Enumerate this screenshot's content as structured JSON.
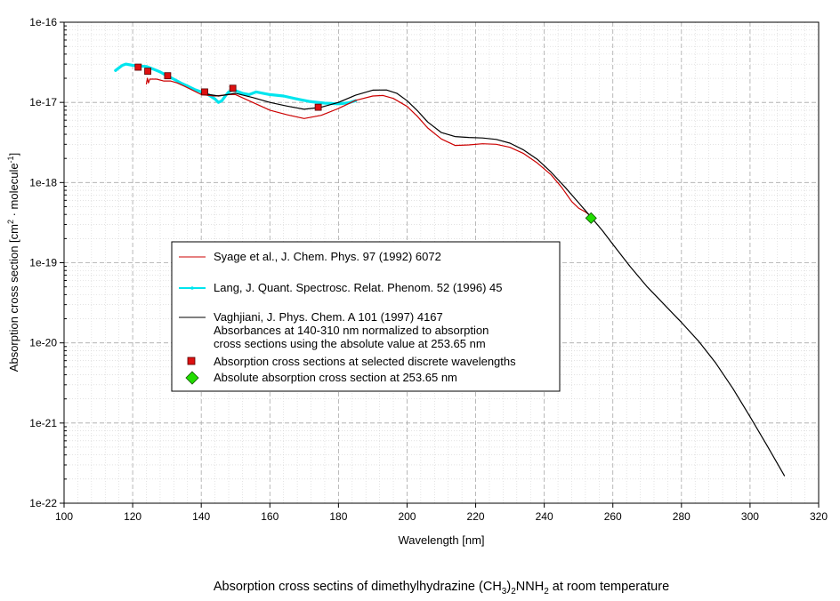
{
  "chart_data": {
    "type": "line",
    "title": "Absorption cross sectins of dimethylhydrazine (CH3)2NNH2 at room temperature",
    "caption_parts": {
      "t1": "Absorption cross sectins of dimethylhydrazine (CH",
      "s1": "3",
      "t2": ")",
      "s2": "2",
      "t3": "NNH",
      "s3": "2",
      "t4": " at room temperature"
    },
    "xlabel": "Wavelength [nm]",
    "ylabel_parts": {
      "t1": "Absorption cross section [cm",
      "sup1": "2",
      "t2": " · molecule",
      "sup2": "-1",
      "t3": "]"
    },
    "xlim": [
      100,
      320
    ],
    "ylim": [
      1e-22,
      1e-16
    ],
    "yscale": "log",
    "grid": true,
    "x_ticks": [
      "100",
      "120",
      "140",
      "160",
      "180",
      "200",
      "220",
      "240",
      "260",
      "280",
      "300",
      "320"
    ],
    "y_ticks": [
      "1e-22",
      "1e-21",
      "1e-20",
      "1e-19",
      "1e-18",
      "1e-17",
      "1e-16"
    ],
    "series": [
      {
        "name": "Syage et al., J. Chem. Phys. 97 (1992) 6072",
        "color": "#cc0000",
        "style": "thin-line",
        "points": [
          [
            124,
            1.7e-17
          ],
          [
            124.3,
            2e-17
          ],
          [
            124.6,
            1.75e-17
          ],
          [
            125,
            1.95e-17
          ],
          [
            127,
            1.95e-17
          ],
          [
            129,
            1.85e-17
          ],
          [
            131,
            1.85e-17
          ],
          [
            133,
            1.75e-17
          ],
          [
            135,
            1.6e-17
          ],
          [
            137,
            1.45e-17
          ],
          [
            140,
            1.25e-17
          ],
          [
            144,
            1.2e-17
          ],
          [
            148,
            1.25e-17
          ],
          [
            150,
            1.25e-17
          ],
          [
            155,
            1e-17
          ],
          [
            160,
            8e-18
          ],
          [
            165,
            7e-18
          ],
          [
            170,
            6.3e-18
          ],
          [
            175,
            6.9e-18
          ],
          [
            180,
            8.4e-18
          ],
          [
            185,
            1.06e-17
          ],
          [
            190,
            1.2e-17
          ],
          [
            193,
            1.22e-17
          ],
          [
            196,
            1.12e-17
          ],
          [
            200,
            8.9e-18
          ],
          [
            203,
            6.7e-18
          ],
          [
            206,
            4.8e-18
          ],
          [
            210,
            3.5e-18
          ],
          [
            214,
            2.9e-18
          ],
          [
            218,
            2.95e-18
          ],
          [
            222,
            3.05e-18
          ],
          [
            226,
            3e-18
          ],
          [
            230,
            2.75e-18
          ],
          [
            234,
            2.3e-18
          ],
          [
            238,
            1.75e-18
          ],
          [
            242,
            1.25e-18
          ],
          [
            245,
            8.8e-19
          ],
          [
            248,
            5.8e-19
          ],
          [
            250,
            4.8e-19
          ],
          [
            252,
            4.3e-19
          ],
          [
            253.65,
            3.8e-19
          ]
        ]
      },
      {
        "name": "Lang, J. Quant. Spectrosc. Relat. Phenom. 52 (1996) 45",
        "color": "#00e5ee",
        "style": "thick-line",
        "points": [
          [
            115,
            2.5e-17
          ],
          [
            116,
            2.7e-17
          ],
          [
            117,
            2.9e-17
          ],
          [
            118,
            3e-17
          ],
          [
            120,
            2.9e-17
          ],
          [
            122,
            2.85e-17
          ],
          [
            124,
            2.8e-17
          ],
          [
            126,
            2.6e-17
          ],
          [
            128,
            2.4e-17
          ],
          [
            130,
            2.15e-17
          ],
          [
            132,
            1.95e-17
          ],
          [
            134,
            1.75e-17
          ],
          [
            136,
            1.6e-17
          ],
          [
            138,
            1.45e-17
          ],
          [
            140,
            1.35e-17
          ],
          [
            142,
            1.25e-17
          ],
          [
            144,
            1.1e-17
          ],
          [
            145,
            1e-17
          ],
          [
            146,
            1.05e-17
          ],
          [
            147,
            1.2e-17
          ],
          [
            148,
            1.35e-17
          ],
          [
            149,
            1.42e-17
          ],
          [
            150,
            1.4e-17
          ],
          [
            152,
            1.3e-17
          ],
          [
            154,
            1.25e-17
          ],
          [
            156,
            1.35e-17
          ],
          [
            158,
            1.3e-17
          ],
          [
            160,
            1.25e-17
          ],
          [
            164,
            1.2e-17
          ],
          [
            168,
            1.1e-17
          ],
          [
            172,
            1.02e-17
          ],
          [
            176,
            9.8e-18
          ],
          [
            180,
            9.6e-18
          ],
          [
            183,
            9.9e-18
          ],
          [
            185,
            1.05e-17
          ]
        ]
      },
      {
        "name": "Vaghjiani, J. Phys. Chem. A 101 (1997) 4167",
        "note": [
          "Absorbances at 140-310 nm normalized to absorption",
          "cross sections using the absolute value at 253.65 nm"
        ],
        "color": "#000000",
        "style": "thin-line",
        "points": [
          [
            140,
            1.3e-17
          ],
          [
            145,
            1.2e-17
          ],
          [
            150,
            1.3e-17
          ],
          [
            155,
            1.15e-17
          ],
          [
            160,
            1e-17
          ],
          [
            165,
            9e-18
          ],
          [
            170,
            8.2e-18
          ],
          [
            175,
            8.7e-18
          ],
          [
            180,
            1e-17
          ],
          [
            185,
            1.23e-17
          ],
          [
            190,
            1.42e-17
          ],
          [
            194,
            1.43e-17
          ],
          [
            197,
            1.3e-17
          ],
          [
            200,
            1.05e-17
          ],
          [
            203,
            7.9e-18
          ],
          [
            206,
            5.7e-18
          ],
          [
            210,
            4.2e-18
          ],
          [
            214,
            3.75e-18
          ],
          [
            218,
            3.65e-18
          ],
          [
            222,
            3.6e-18
          ],
          [
            226,
            3.45e-18
          ],
          [
            230,
            3.1e-18
          ],
          [
            234,
            2.55e-18
          ],
          [
            238,
            1.95e-18
          ],
          [
            242,
            1.35e-18
          ],
          [
            246,
            8.8e-19
          ],
          [
            250,
            5.6e-19
          ],
          [
            253.65,
            3.7e-19
          ],
          [
            257,
            2.5e-19
          ],
          [
            260,
            1.7e-19
          ],
          [
            265,
            9e-20
          ],
          [
            270,
            5e-20
          ],
          [
            275,
            3e-20
          ],
          [
            280,
            1.8e-20
          ],
          [
            285,
            1.05e-20
          ],
          [
            290,
            5.6e-21
          ],
          [
            295,
            2.7e-21
          ],
          [
            300,
            1.2e-21
          ],
          [
            305,
            5.2e-22
          ],
          [
            310,
            2.2e-22
          ]
        ]
      },
      {
        "name": "Absorption cross sections at selected discrete  wavelengths",
        "color": "#dd1111",
        "style": "square-markers",
        "points": [
          [
            121.6,
            2.75e-17
          ],
          [
            124.4,
            2.45e-17
          ],
          [
            130.2,
            2.15e-17
          ],
          [
            141,
            1.35e-17
          ],
          [
            149.2,
            1.5e-17
          ],
          [
            174.1,
            8.7e-18
          ]
        ]
      },
      {
        "name": "Absolute absorption cross section at 253.65 nm",
        "color": "#22dd00",
        "style": "diamond-marker",
        "points": [
          [
            253.65,
            3.6e-19
          ]
        ]
      }
    ]
  }
}
